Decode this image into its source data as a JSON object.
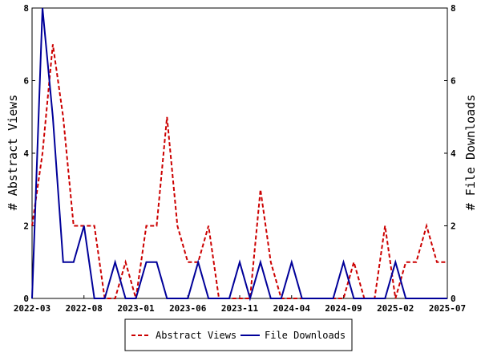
{
  "chart_data": {
    "type": "line",
    "ylabel_left": "# Abstract Views",
    "ylabel_right": "# File Downloads",
    "ylim": [
      0,
      8
    ],
    "yticks": [
      "0",
      "2",
      "4",
      "6",
      "8"
    ],
    "xticks": [
      "2022-03",
      "2022-08",
      "2023-01",
      "2023-06",
      "2023-11",
      "2024-04",
      "2024-09",
      "2025-02",
      "2025-07"
    ],
    "legend_position": "bottom-center",
    "grid": false,
    "x": [
      "2022-03",
      "2022-04",
      "2022-05",
      "2022-06",
      "2022-07",
      "2022-08",
      "2022-09",
      "2022-10",
      "2022-11",
      "2022-12",
      "2023-01",
      "2023-02",
      "2023-03",
      "2023-04",
      "2023-05",
      "2023-06",
      "2023-07",
      "2023-08",
      "2023-09",
      "2023-10",
      "2023-11",
      "2023-12",
      "2024-01",
      "2024-02",
      "2024-03",
      "2024-04",
      "2024-05",
      "2024-06",
      "2024-07",
      "2024-08",
      "2024-09",
      "2024-10",
      "2024-11",
      "2024-12",
      "2025-01",
      "2025-02",
      "2025-03",
      "2025-04",
      "2025-05",
      "2025-06",
      "2025-07"
    ],
    "series": [
      {
        "name": "Abstract Views",
        "color": "#cc0000",
        "dash": "dashed",
        "axis": "left",
        "values": [
          2,
          4,
          7,
          5,
          2,
          2,
          2,
          0,
          0,
          1,
          0,
          2,
          2,
          5,
          2,
          1,
          1,
          2,
          0,
          0,
          0,
          0,
          3,
          1,
          0,
          0,
          0,
          0,
          0,
          0,
          0,
          1,
          0,
          0,
          2,
          0,
          1,
          1,
          2,
          1,
          1
        ]
      },
      {
        "name": "File Downloads",
        "color": "#000099",
        "dash": "solid",
        "axis": "right",
        "values": [
          0,
          8,
          5,
          1,
          1,
          2,
          0,
          0,
          1,
          0,
          0,
          1,
          1,
          0,
          0,
          0,
          1,
          0,
          0,
          0,
          1,
          0,
          1,
          0,
          0,
          1,
          0,
          0,
          0,
          0,
          1,
          0,
          0,
          0,
          0,
          1,
          0,
          0,
          0,
          0,
          0
        ]
      }
    ]
  }
}
